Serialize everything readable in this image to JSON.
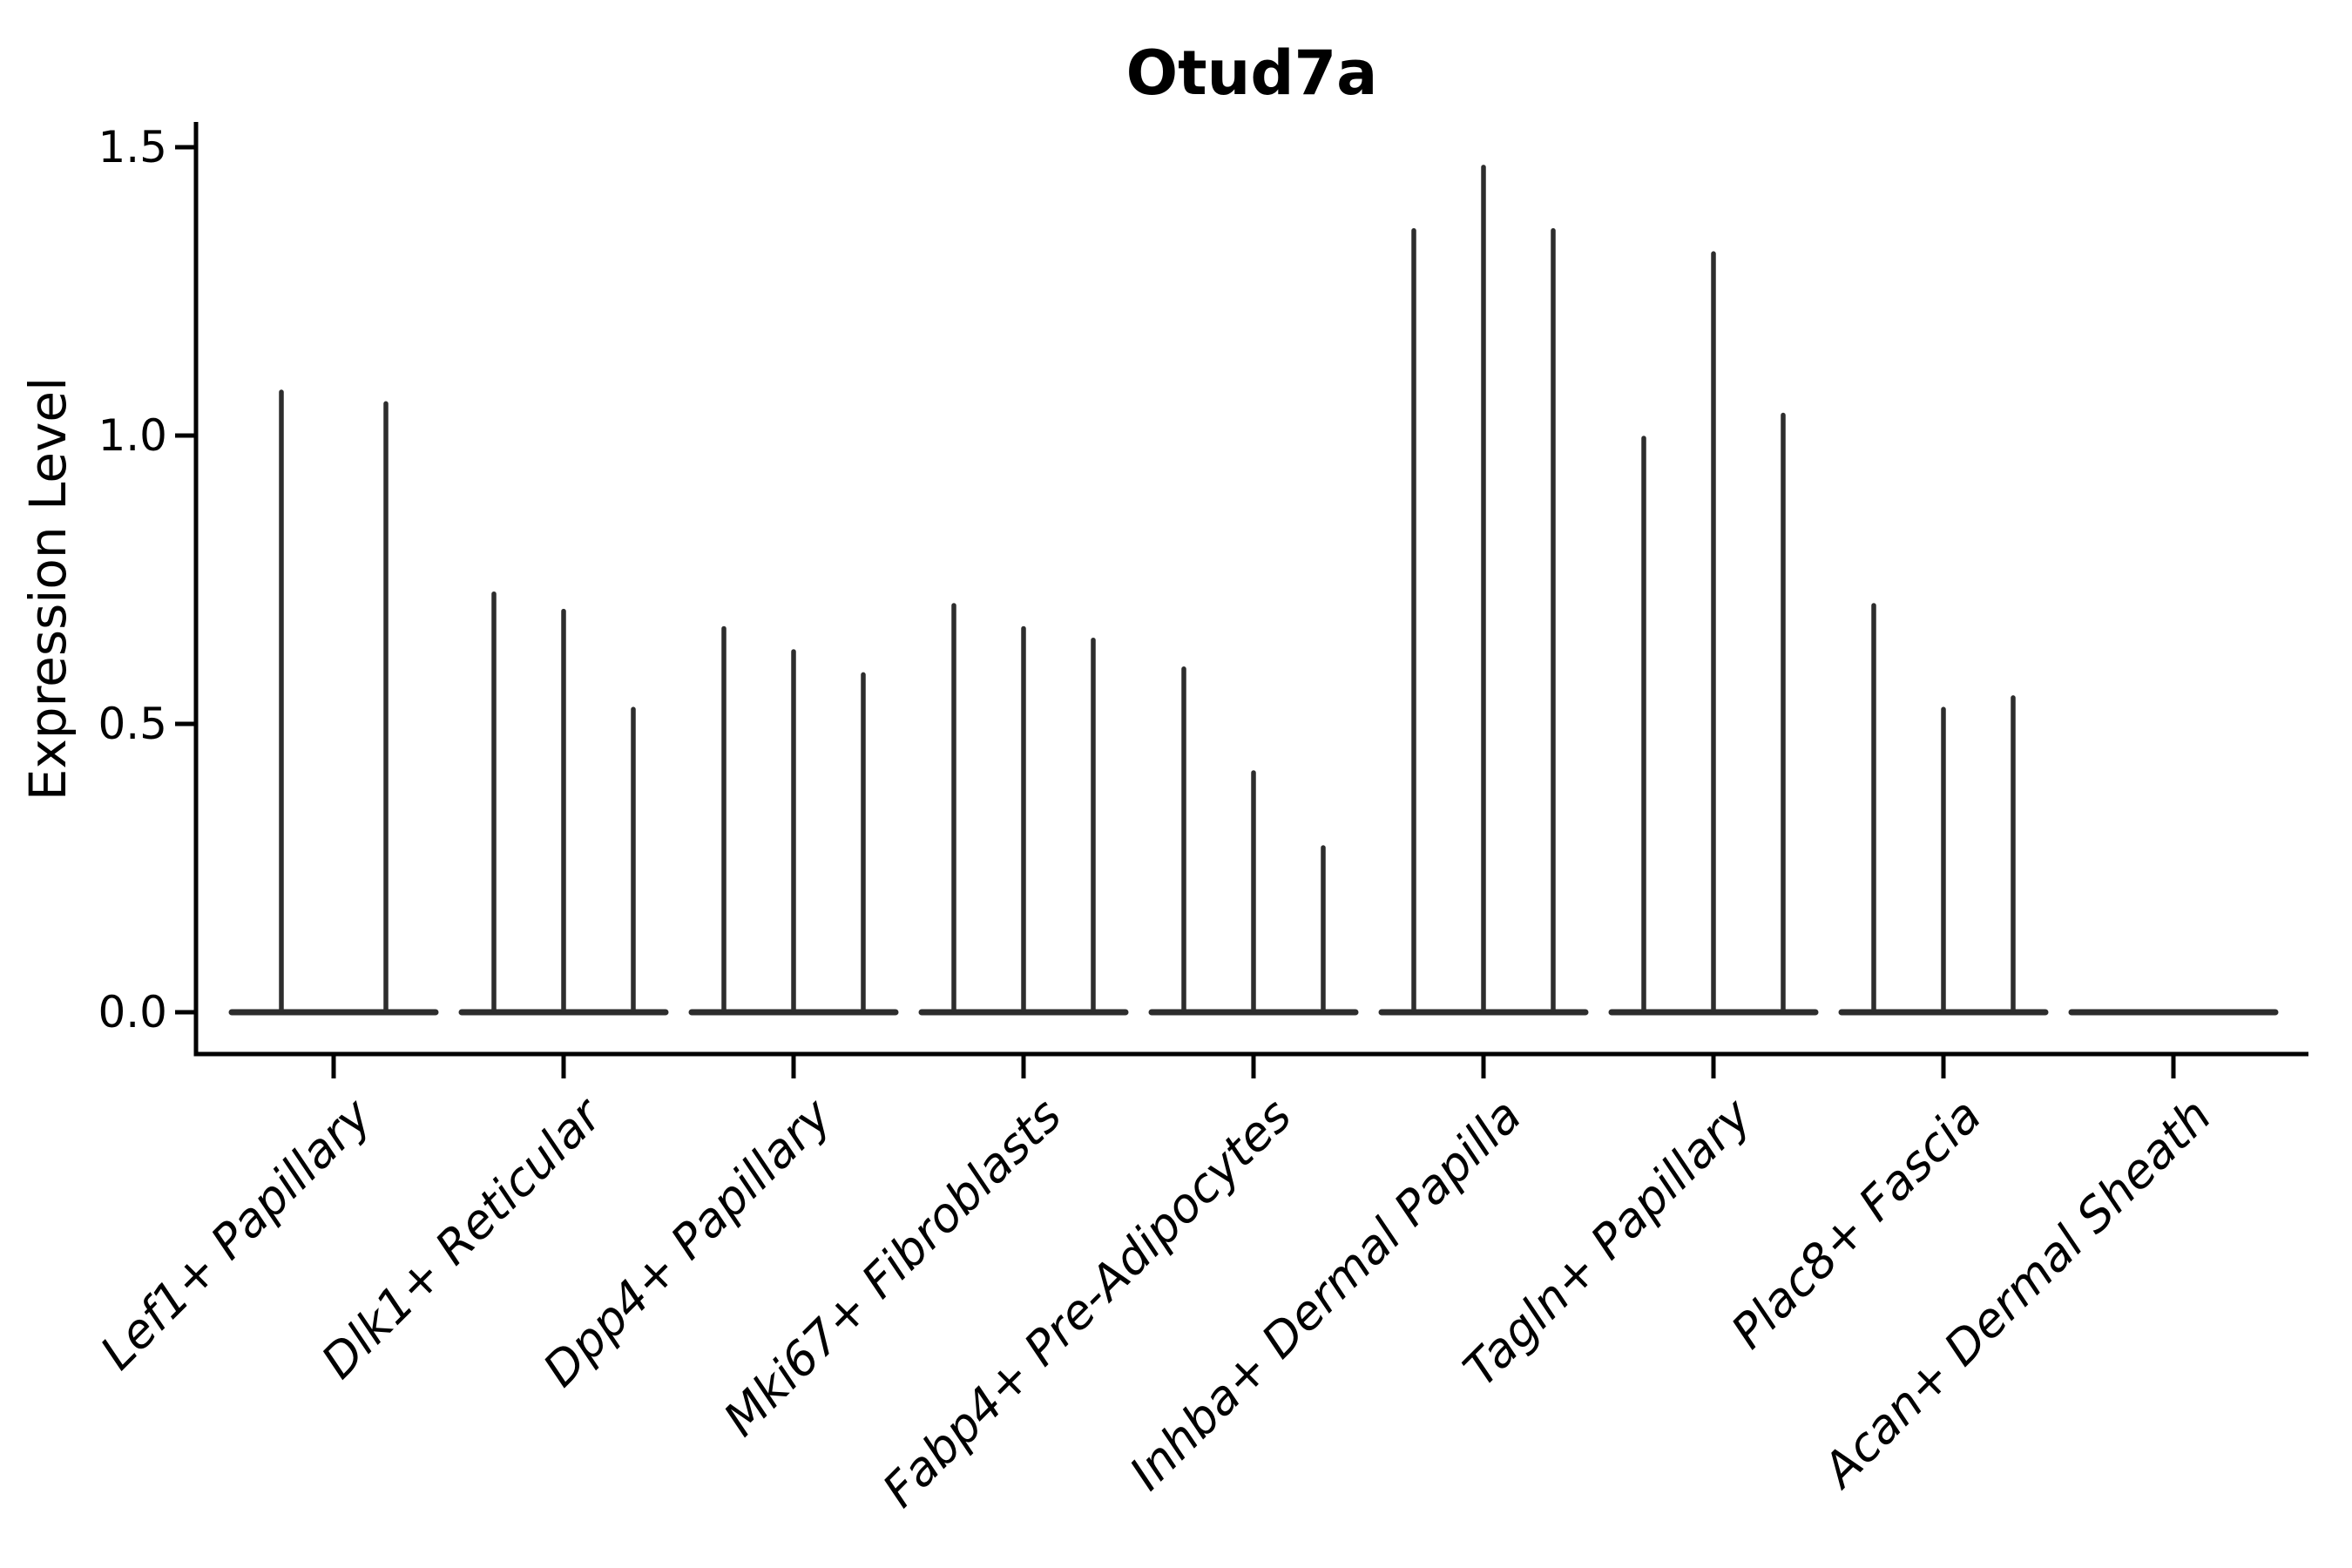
{
  "chart_data": {
    "type": "violin",
    "title": "Otud7a",
    "ylabel": "Expression Level",
    "xlabel": "",
    "ylim": [
      0,
      1.5
    ],
    "ytick_labels": [
      "0.0",
      "0.5",
      "1.0",
      "1.5"
    ],
    "ytick_values": [
      0.0,
      0.5,
      1.0,
      1.5
    ],
    "grid": false,
    "legend": false,
    "colors": {
      "violin_line": "#2d2d2d",
      "axis": "#000000",
      "text": "#000000",
      "background": "#ffffff"
    },
    "categories": [
      "Lef1+ Papillary",
      "Dlk1+ Reticular",
      "Dpp4+ Papillary",
      "Mki67+ Fibroblasts",
      "Fabp4+ Pre-Adipocytes",
      "Inhba+ Dermal Papilla",
      "Tagln+ Papillary",
      "Plac8+ Fascia",
      "Acan+ Dermal Sheath"
    ],
    "violins": [
      {
        "category": "Lef1+ Papillary",
        "peaks": [
          1.08,
          1.06
        ]
      },
      {
        "category": "Dlk1+ Reticular",
        "peaks": [
          0.73,
          0.7,
          0.53
        ]
      },
      {
        "category": "Dpp4+ Papillary",
        "peaks": [
          0.67,
          0.63,
          0.59
        ]
      },
      {
        "category": "Mki67+ Fibroblasts",
        "peaks": [
          0.71,
          0.67,
          0.65
        ]
      },
      {
        "category": "Fabp4+ Pre-Adipocytes",
        "peaks": [
          0.6,
          0.42,
          0.29
        ]
      },
      {
        "category": "Inhba+ Dermal Papilla",
        "peaks": [
          1.36,
          1.47,
          1.36
        ]
      },
      {
        "category": "Tagln+ Papillary",
        "peaks": [
          1.0,
          1.32,
          1.04
        ]
      },
      {
        "category": "Plac8+ Fascia",
        "peaks": [
          0.71,
          0.53,
          0.55
        ]
      },
      {
        "category": "Acan+ Dermal Sheath",
        "peaks": []
      }
    ]
  }
}
